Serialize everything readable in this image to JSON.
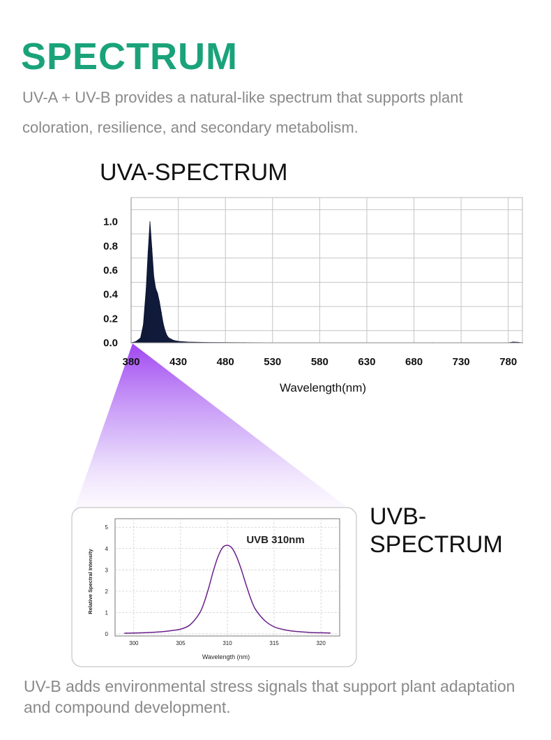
{
  "page": {
    "heading": "SPECTRUM",
    "heading_color": "#1aa37a",
    "intro": "UV-A + UV-B provides a natural-like spectrum that supports plant coloration, resilience, and secondary metabolism.",
    "footer": "UV-B adds environmental stress signals that support plant adaptation and compound development."
  },
  "chart_data": [
    {
      "type": "area",
      "title": "UVA-SPECTRUM",
      "xlabel": "Wavelength(nm)",
      "ylabel": "",
      "xlim": [
        380,
        795
      ],
      "ylim": [
        0,
        1.2
      ],
      "xticks": [
        380,
        430,
        480,
        530,
        580,
        630,
        680,
        730,
        780
      ],
      "yticks": [
        0.0,
        0.2,
        0.4,
        0.6,
        0.8,
        1.0
      ],
      "ytick_labels": [
        "0.0",
        "0.2",
        "0.4",
        "0.6",
        "0.8",
        "1.0"
      ],
      "grid": true,
      "fill_color": "#1c2a55",
      "x": [
        380,
        385,
        390,
        393,
        396,
        398,
        400,
        402,
        404,
        406,
        408,
        410,
        412,
        414,
        416,
        418,
        420,
        425,
        430,
        440,
        460,
        500,
        600,
        700,
        780,
        785,
        790,
        795
      ],
      "y": [
        0.0,
        0.01,
        0.04,
        0.15,
        0.45,
        0.75,
        1.0,
        0.78,
        0.55,
        0.45,
        0.41,
        0.34,
        0.25,
        0.16,
        0.1,
        0.06,
        0.04,
        0.02,
        0.012,
        0.006,
        0.003,
        0.001,
        0.0,
        0.0,
        0.0,
        0.006,
        0.004,
        0.0
      ]
    },
    {
      "type": "line",
      "title": "UVB-SPECTRUM",
      "annotation": "UVB 310nm",
      "xlabel": "Wavelength (nm)",
      "ylabel": "Relative Spectral Intensity",
      "xlim": [
        298,
        322
      ],
      "ylim": [
        0,
        5
      ],
      "xticks": [
        300,
        305,
        310,
        315,
        320
      ],
      "yticks": [
        0,
        1,
        2,
        3,
        4,
        5
      ],
      "grid": true,
      "line_color": "#6a1f8a",
      "x": [
        299,
        300,
        301,
        302,
        303,
        304,
        305,
        306,
        307,
        307.5,
        308,
        308.5,
        309,
        309.5,
        310,
        310.5,
        311,
        311.5,
        312,
        312.5,
        313,
        314,
        315,
        316,
        317,
        318,
        319,
        320,
        321
      ],
      "y": [
        0.03,
        0.04,
        0.05,
        0.07,
        0.1,
        0.15,
        0.22,
        0.42,
        0.95,
        1.45,
        2.15,
        2.95,
        3.62,
        4.05,
        4.15,
        4.02,
        3.6,
        3.0,
        2.3,
        1.65,
        1.15,
        0.62,
        0.33,
        0.2,
        0.13,
        0.09,
        0.06,
        0.05,
        0.04
      ]
    }
  ]
}
